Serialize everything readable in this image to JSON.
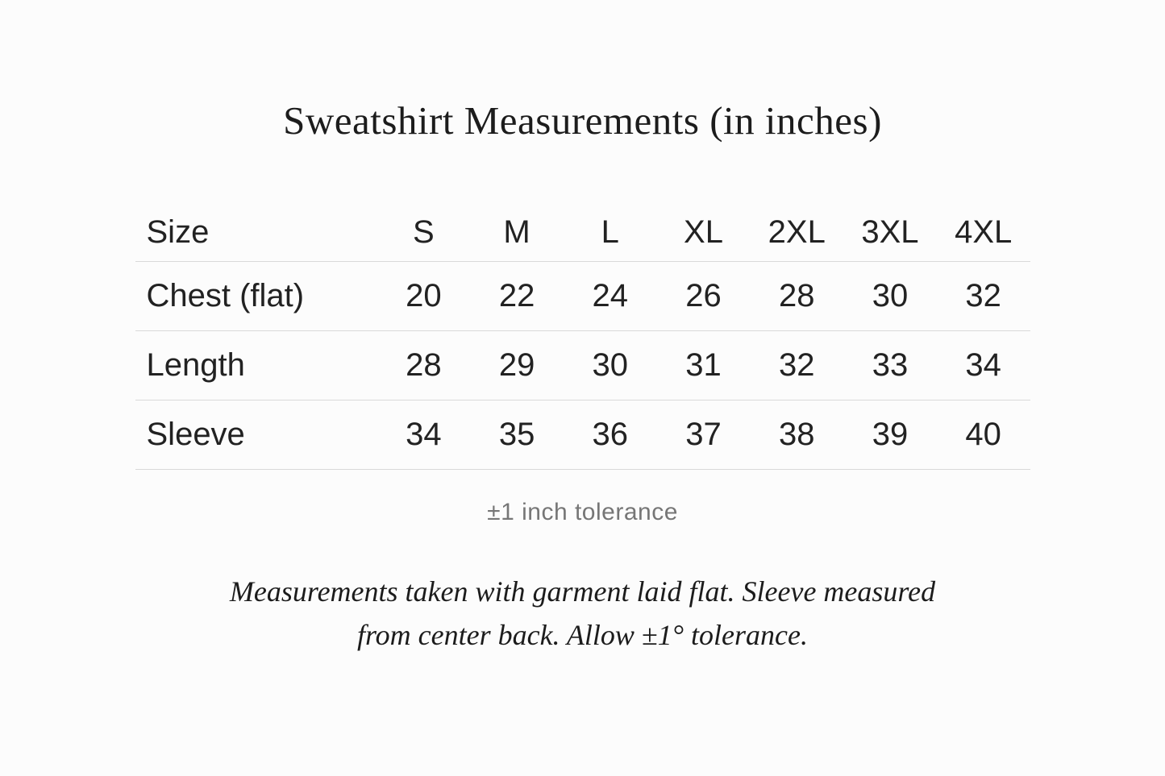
{
  "page": {
    "title": "Sweatshirt Measurements (in inches)",
    "tolerance_note": "±1 inch tolerance",
    "footnote": {
      "line1": "Measurements taken with garment laid flat. Sleeve measured",
      "line2": "from center back. Allow ±1° tolerance."
    },
    "colors": {
      "background": "#fcfcfc",
      "text": "#1c1c1c",
      "muted_text": "#767676",
      "divider": "#d9d9d9"
    }
  },
  "table": {
    "header": [
      "Size",
      "S",
      "M",
      "L",
      "XL",
      "2XL",
      "3XL",
      "4XL"
    ],
    "rows": [
      {
        "label": "Chest (flat)",
        "values": [
          20,
          22,
          24,
          26,
          28,
          30,
          32
        ]
      },
      {
        "label": "Length",
        "values": [
          28,
          29,
          30,
          31,
          32,
          33,
          34
        ]
      },
      {
        "label": "Sleeve",
        "values": [
          34,
          35,
          36,
          37,
          38,
          39,
          40
        ]
      }
    ]
  },
  "chart_data": {
    "type": "table",
    "title": "Sweatshirt Measurements (in inches)",
    "columns": [
      "Size",
      "S",
      "M",
      "L",
      "XL",
      "2XL",
      "3XL",
      "4XL"
    ],
    "rows": [
      {
        "label": "Chest (flat)",
        "values": [
          20,
          22,
          24,
          26,
          28,
          30,
          32
        ]
      },
      {
        "label": "Length",
        "values": [
          28,
          29,
          30,
          31,
          32,
          33,
          34
        ]
      },
      {
        "label": "Sleeve",
        "values": [
          34,
          35,
          36,
          37,
          38,
          39,
          40
        ]
      }
    ],
    "notes": [
      "±1 inch tolerance",
      "Measurements taken with garment laid flat. Sleeve measured from center back. Allow ±1° tolerance."
    ]
  }
}
